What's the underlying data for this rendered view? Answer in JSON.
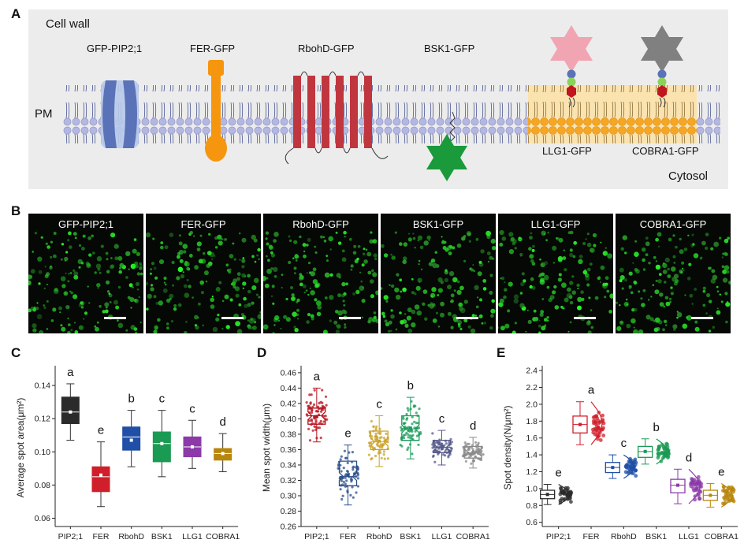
{
  "panels": {
    "a": "A",
    "b": "B",
    "c": "C",
    "d": "D",
    "e": "E"
  },
  "panel_a": {
    "cell_wall": "Cell  wall",
    "pm": "PM",
    "cytosol": "Cytosol",
    "proteins": [
      "GFP-PIP2;1",
      "FER-GFP",
      "RbohD-GFP",
      "BSK1-GFP",
      "LLG1-GFP",
      "COBRA1-GFP"
    ],
    "colors": {
      "pip2": "#5a72b8",
      "fer": "#f5960e",
      "rbohd": "#c0363f",
      "bsk1": "#1a9a3a",
      "llg1_star": "#f1a4b2",
      "cobra1_star": "#808080",
      "raft": "#f5a623",
      "lipid": "#b4b8e0"
    }
  },
  "panel_b": {
    "images": [
      "GFP-PIP2;1",
      "FER-GFP",
      "RbohD-GFP",
      "BSK1-GFP",
      "LLG1-GFP",
      "COBRA1-GFP"
    ]
  },
  "chart_data": [
    {
      "type": "box",
      "panel": "C",
      "ylabel": "Average spot area(μm²)",
      "categories": [
        "PIP2;1",
        "FER",
        "RbohD",
        "BSK1",
        "LLG1",
        "COBRA1"
      ],
      "ylim": [
        0.055,
        0.15
      ],
      "yticks": [
        "0.06",
        "0.08",
        "0.10",
        "0.12",
        "0.14"
      ],
      "colors": [
        "#2b2b2b",
        "#d01f2a",
        "#1f4fa6",
        "#1a9a52",
        "#8b3aa8",
        "#b8860b"
      ],
      "letters": [
        "a",
        "e",
        "b",
        "c",
        "c",
        "d"
      ],
      "boxes": [
        {
          "min": 0.107,
          "q1": 0.117,
          "median": 0.124,
          "q3": 0.133,
          "max": 0.141,
          "mean": 0.124
        },
        {
          "min": 0.067,
          "q1": 0.076,
          "median": 0.085,
          "q3": 0.091,
          "max": 0.106,
          "mean": 0.086
        },
        {
          "min": 0.091,
          "q1": 0.101,
          "median": 0.109,
          "q3": 0.115,
          "max": 0.125,
          "mean": 0.107
        },
        {
          "min": 0.085,
          "q1": 0.094,
          "median": 0.105,
          "q3": 0.112,
          "max": 0.125,
          "mean": 0.105
        },
        {
          "min": 0.09,
          "q1": 0.097,
          "median": 0.103,
          "q3": 0.109,
          "max": 0.119,
          "mean": 0.103
        },
        {
          "min": 0.088,
          "q1": 0.095,
          "median": 0.099,
          "q3": 0.102,
          "max": 0.111,
          "mean": 0.099
        }
      ]
    },
    {
      "type": "box",
      "panel": "D",
      "ylabel": "Mean spot width(μm)",
      "categories": [
        "PIP2;1",
        "FER",
        "RbohD",
        "BSK1",
        "LLG1",
        "COBRA1"
      ],
      "ylim": [
        0.26,
        0.465
      ],
      "yticks": [
        "0.26",
        "0.28",
        "0.30",
        "0.32",
        "0.34",
        "0.36",
        "0.38",
        "0.40",
        "0.42",
        "0.44",
        "0.46"
      ],
      "colors": [
        "#b8121e",
        "#2a4f88",
        "#c9a227",
        "#1a9a5a",
        "#555a8a",
        "#8a8a8a"
      ],
      "letters": [
        "a",
        "e",
        "c",
        "b",
        "c",
        "d"
      ],
      "boxes": [
        {
          "min": 0.37,
          "q1": 0.393,
          "median": 0.404,
          "q3": 0.414,
          "max": 0.44,
          "mean": 0.403
        },
        {
          "min": 0.288,
          "q1": 0.313,
          "median": 0.325,
          "q3": 0.345,
          "max": 0.366,
          "mean": 0.327
        },
        {
          "min": 0.338,
          "q1": 0.36,
          "median": 0.37,
          "q3": 0.384,
          "max": 0.404,
          "mean": 0.371
        },
        {
          "min": 0.348,
          "q1": 0.372,
          "median": 0.387,
          "q3": 0.404,
          "max": 0.428,
          "mean": 0.388
        },
        {
          "min": 0.34,
          "q1": 0.356,
          "median": 0.363,
          "q3": 0.372,
          "max": 0.385,
          "mean": 0.364
        },
        {
          "min": 0.336,
          "q1": 0.349,
          "median": 0.356,
          "q3": 0.364,
          "max": 0.376,
          "mean": 0.356
        }
      ]
    },
    {
      "type": "box",
      "panel": "E",
      "ylabel": "Spot density(N/μm²)",
      "categories": [
        "PIP2;1",
        "FER",
        "RbohD",
        "BSK1",
        "LLG1",
        "COBRA1"
      ],
      "ylim": [
        0.55,
        2.42
      ],
      "yticks": [
        "0.6",
        "0.8",
        "1.0",
        "1.2",
        "1.4",
        "1.6",
        "1.8",
        "2.0",
        "2.2",
        "2.4"
      ],
      "colors": [
        "#2b2b2b",
        "#d01f2a",
        "#1f4fa6",
        "#1a9a52",
        "#8b3aa8",
        "#b8860b"
      ],
      "letters": [
        "e",
        "a",
        "c",
        "b",
        "d",
        "e"
      ],
      "boxes": [
        {
          "min": 0.81,
          "q1": 0.88,
          "median": 0.93,
          "q3": 0.98,
          "max": 1.05,
          "mean": 0.93
        },
        {
          "min": 1.52,
          "q1": 1.66,
          "median": 1.76,
          "q3": 1.86,
          "max": 2.03,
          "mean": 1.76
        },
        {
          "min": 1.12,
          "q1": 1.19,
          "median": 1.25,
          "q3": 1.31,
          "max": 1.4,
          "mean": 1.25
        },
        {
          "min": 1.29,
          "q1": 1.37,
          "median": 1.44,
          "q3": 1.5,
          "max": 1.59,
          "mean": 1.44
        },
        {
          "min": 0.82,
          "q1": 0.95,
          "median": 1.04,
          "q3": 1.11,
          "max": 1.23,
          "mean": 1.04
        },
        {
          "min": 0.78,
          "q1": 0.86,
          "median": 0.92,
          "q3": 0.98,
          "max": 1.06,
          "mean": 0.92
        }
      ]
    }
  ]
}
